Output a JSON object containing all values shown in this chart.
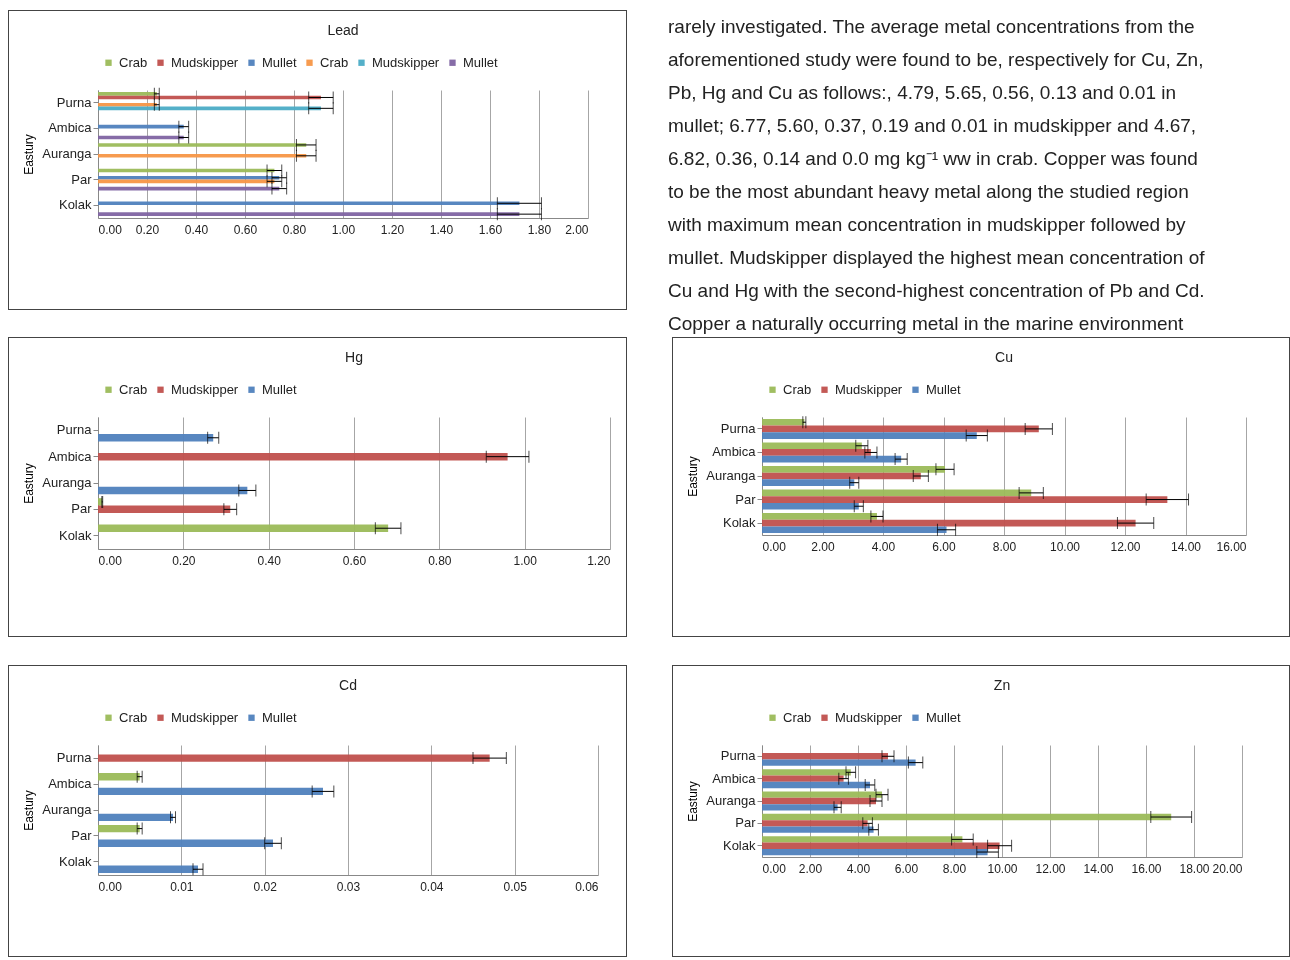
{
  "chart_data": [
    {
      "type": "bar",
      "orientation": "horizontal",
      "title": "Lead",
      "ylabel": "Eastury",
      "categories": [
        "Purna",
        "Ambica",
        "Auranga",
        "Par",
        "Kolak"
      ],
      "series": [
        {
          "name": "Crab",
          "color": "#9bbb59",
          "values": [
            0.24,
            null,
            0.85,
            0.72,
            null
          ],
          "errors": [
            0.01,
            null,
            0.04,
            0.03,
            null
          ]
        },
        {
          "name": "Mudskipper",
          "color": "#c0504d",
          "values": [
            0.91,
            null,
            null,
            null,
            null
          ],
          "errors": [
            0.05,
            null,
            null,
            null,
            null
          ]
        },
        {
          "name": "Mullet",
          "color": "#4f81bd",
          "values": [
            null,
            0.35,
            null,
            0.74,
            1.72
          ],
          "errors": [
            null,
            0.02,
            null,
            0.03,
            0.09
          ]
        },
        {
          "name": "Crab",
          "color": "#f79646",
          "values": [
            0.24,
            null,
            0.85,
            0.72,
            null
          ],
          "errors": [
            0.01,
            null,
            0.04,
            0.03,
            null
          ]
        },
        {
          "name": "Mudskipper",
          "color": "#4bacc6",
          "values": [
            0.91,
            null,
            null,
            null,
            null
          ],
          "errors": [
            0.05,
            null,
            null,
            null,
            null
          ]
        },
        {
          "name": "Mullet",
          "color": "#8064a2",
          "values": [
            null,
            0.35,
            null,
            0.74,
            1.72
          ],
          "errors": [
            null,
            0.02,
            null,
            0.03,
            0.09
          ]
        }
      ],
      "xlim": [
        0,
        2
      ],
      "xticks": [
        {
          "value": 0,
          "label": "0.00"
        },
        {
          "value": 0.2,
          "label": "0.20"
        },
        {
          "value": 0.4,
          "label": "0.40"
        },
        {
          "value": 0.6,
          "label": "0.60"
        },
        {
          "value": 0.8,
          "label": "0.80"
        },
        {
          "value": 1,
          "label": "1.00"
        },
        {
          "value": 1.2,
          "label": "1.20"
        },
        {
          "value": 1.4,
          "label": "1.40"
        },
        {
          "value": 1.6,
          "label": "1.60"
        },
        {
          "value": 1.8,
          "label": "1.80"
        },
        {
          "value": 2,
          "label": "2.00"
        }
      ],
      "grid": "x",
      "legend": "top"
    },
    {
      "type": "other",
      "annotations": [
        "rarely investigated. The average metal concentrations from the",
        "aforementioned study were found to be, respectively for Cu, Zn,",
        "Pb, Hg and Cu as follows:, 4.79, 5.65, 0.56, 0.13 and 0.01 in",
        "mullet; 6.77, 5.60, 0.37, 0.19 and 0.01 in mudskipper and 4.67,",
        "6.82, 0.36, 0.14 and 0.0 mg kg⁻¹ ww in crab. Copper was found",
        "to be the most abundant heavy metal along the studied region",
        "with maximum mean concentration in mudskipper followed by",
        "mullet. Mudskipper displayed the highest mean concentration of",
        "Cu and Hg with the second-highest concentration of Pb and Cd.",
        "Copper a naturally occurring metal in the marine environment"
      ]
    },
    {
      "type": "bar",
      "orientation": "horizontal",
      "title": "Hg",
      "ylabel": "Eastury",
      "categories": [
        "Purna",
        "Ambica",
        "Auranga",
        "Par",
        "Kolak"
      ],
      "series": [
        {
          "name": "Crab",
          "color": "#9bbb59",
          "values": [
            null,
            null,
            null,
            0.01,
            0.68
          ],
          "errors": [
            null,
            null,
            null,
            0.001,
            0.03
          ]
        },
        {
          "name": "Mudskipper",
          "color": "#c0504d",
          "values": [
            null,
            0.96,
            null,
            0.31,
            null
          ],
          "errors": [
            null,
            0.05,
            null,
            0.015,
            null
          ]
        },
        {
          "name": "Mullet",
          "color": "#4f81bd",
          "values": [
            0.27,
            null,
            0.35,
            null,
            null
          ],
          "errors": [
            0.013,
            null,
            0.02,
            null,
            null
          ]
        }
      ],
      "xlim": [
        0,
        1.2
      ],
      "xticks": [
        {
          "value": 0,
          "label": "0.00"
        },
        {
          "value": 0.2,
          "label": "0.20"
        },
        {
          "value": 0.4,
          "label": "0.40"
        },
        {
          "value": 0.6,
          "label": "0.60"
        },
        {
          "value": 0.8,
          "label": "0.80"
        },
        {
          "value": 1,
          "label": "1.00"
        },
        {
          "value": 1.2,
          "label": "1.20"
        }
      ],
      "grid": "x",
      "legend": "top"
    },
    {
      "type": "bar",
      "orientation": "horizontal",
      "title": "Cu",
      "ylabel": "Eastury",
      "categories": [
        "Purna",
        "Ambica",
        "Auranga",
        "Par",
        "Kolak"
      ],
      "series": [
        {
          "name": "Crab",
          "color": "#9bbb59",
          "values": [
            1.4,
            3.3,
            6.05,
            8.9,
            3.8
          ],
          "errors": [
            0.05,
            0.2,
            0.3,
            0.4,
            0.2
          ]
        },
        {
          "name": "Mudskipper",
          "color": "#c0504d",
          "values": [
            9.15,
            3.6,
            5.25,
            13.4,
            12.35
          ],
          "errors": [
            0.45,
            0.2,
            0.25,
            0.7,
            0.6
          ]
        },
        {
          "name": "Mullet",
          "color": "#4f81bd",
          "values": [
            7.1,
            4.6,
            3.05,
            3.2,
            6.1
          ],
          "errors": [
            0.35,
            0.2,
            0.15,
            0.15,
            0.3
          ]
        }
      ],
      "xlim": [
        0,
        16
      ],
      "xticks": [
        {
          "value": 0,
          "label": "0.00"
        },
        {
          "value": 2,
          "label": "2.00"
        },
        {
          "value": 4,
          "label": "4.00"
        },
        {
          "value": 6,
          "label": "6.00"
        },
        {
          "value": 8,
          "label": "8.00"
        },
        {
          "value": 10,
          "label": "10.00"
        },
        {
          "value": 12,
          "label": "12.00"
        },
        {
          "value": 14,
          "label": "14.00"
        },
        {
          "value": 16,
          "label": "16.00"
        }
      ],
      "grid": "x",
      "legend": "top"
    },
    {
      "type": "bar",
      "orientation": "horizontal",
      "title": "Cd",
      "ylabel": "Eastury",
      "categories": [
        "Purna",
        "Ambica",
        "Auranga",
        "Par",
        "Kolak"
      ],
      "series": [
        {
          "name": "Crab",
          "color": "#9bbb59",
          "values": [
            null,
            0.005,
            null,
            0.005,
            null
          ],
          "errors": [
            null,
            0.0003,
            null,
            0.0003,
            null
          ]
        },
        {
          "name": "Mudskipper",
          "color": "#c0504d",
          "values": [
            0.047,
            null,
            null,
            null,
            null
          ],
          "errors": [
            0.002,
            null,
            null,
            null,
            null
          ]
        },
        {
          "name": "Mullet",
          "color": "#4f81bd",
          "values": [
            null,
            0.027,
            0.009,
            0.021,
            0.012
          ],
          "errors": [
            null,
            0.0013,
            0.0003,
            0.001,
            0.0006
          ]
        }
      ],
      "xlim": [
        0,
        0.06
      ],
      "xticks": [
        {
          "value": 0,
          "label": "0.00"
        },
        {
          "value": 0.01,
          "label": "0.01"
        },
        {
          "value": 0.02,
          "label": "0.02"
        },
        {
          "value": 0.03,
          "label": "0.03"
        },
        {
          "value": 0.04,
          "label": "0.04"
        },
        {
          "value": 0.05,
          "label": "0.05"
        },
        {
          "value": 0.06,
          "label": "0.06"
        }
      ],
      "grid": "x",
      "legend": "top"
    },
    {
      "type": "bar",
      "orientation": "horizontal",
      "title": "Zn",
      "ylabel": "Eastury",
      "categories": [
        "Purna",
        "Ambica",
        "Auranga",
        "Par",
        "Kolak"
      ],
      "series": [
        {
          "name": "Crab",
          "color": "#9bbb59",
          "values": [
            null,
            3.7,
            5.0,
            17.05,
            8.35
          ],
          "errors": [
            null,
            0.2,
            0.25,
            0.85,
            0.45
          ]
        },
        {
          "name": "Mudskipper",
          "color": "#c0504d",
          "values": [
            5.25,
            3.4,
            4.75,
            4.4,
            9.9
          ],
          "errors": [
            0.25,
            0.2,
            0.25,
            0.2,
            0.5
          ]
        },
        {
          "name": "Mullet",
          "color": "#4f81bd",
          "values": [
            6.4,
            4.5,
            3.15,
            4.65,
            9.4
          ],
          "errors": [
            0.3,
            0.2,
            0.15,
            0.2,
            0.45
          ]
        }
      ],
      "xlim": [
        0,
        20
      ],
      "xticks": [
        {
          "value": 0,
          "label": "0.00"
        },
        {
          "value": 2,
          "label": "2.00"
        },
        {
          "value": 4,
          "label": "4.00"
        },
        {
          "value": 6,
          "label": "6.00"
        },
        {
          "value": 8,
          "label": "8.00"
        },
        {
          "value": 10,
          "label": "10.00"
        },
        {
          "value": 12,
          "label": "12.00"
        },
        {
          "value": 14,
          "label": "14.00"
        },
        {
          "value": 16,
          "label": "16.00"
        },
        {
          "value": 18,
          "label": "18.00"
        },
        {
          "value": 20,
          "label": "20.00"
        }
      ],
      "grid": "x",
      "legend": "top"
    }
  ]
}
